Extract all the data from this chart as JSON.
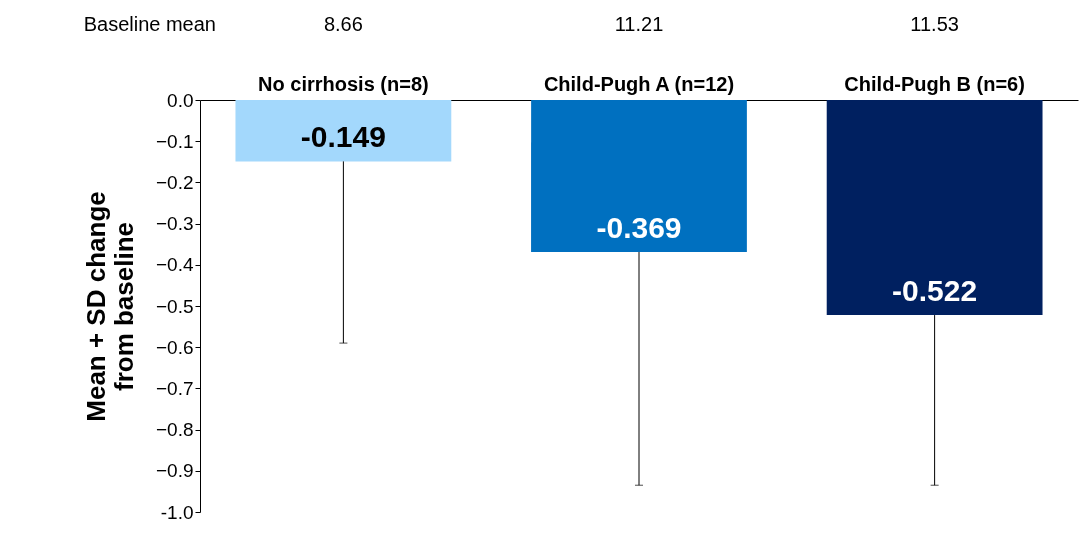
{
  "chart_data": {
    "type": "bar",
    "ylabel": "Mean + SD change from baseline",
    "categories": [
      "No cirrhosis (n=8)",
      "Child-Pugh A (n=12)",
      "Child-Pugh B (n=6)"
    ],
    "values": [
      -0.149,
      -0.369,
      -0.522
    ],
    "colors": [
      "#a3d8fc",
      "#0070c0",
      "#002060"
    ],
    "errors": [
      [
        -0.59,
        -0.149
      ],
      [
        -0.935,
        -0.369
      ],
      [
        -0.935,
        -0.522
      ]
    ],
    "data_labels": true,
    "ylim": [
      -1.0,
      0
    ],
    "yticks": [
      {
        "value": 0,
        "label": "0.0"
      },
      -0.1,
      -0.2,
      -0.3,
      -0.4,
      -0.5,
      -0.6,
      -0.7,
      -0.8,
      -0.9,
      {
        "value": -1,
        "label": "-1.0"
      }
    ],
    "annotations": [
      "Baseline mean",
      "8.66",
      "11.21",
      "11.53"
    ],
    "grid": false
  }
}
